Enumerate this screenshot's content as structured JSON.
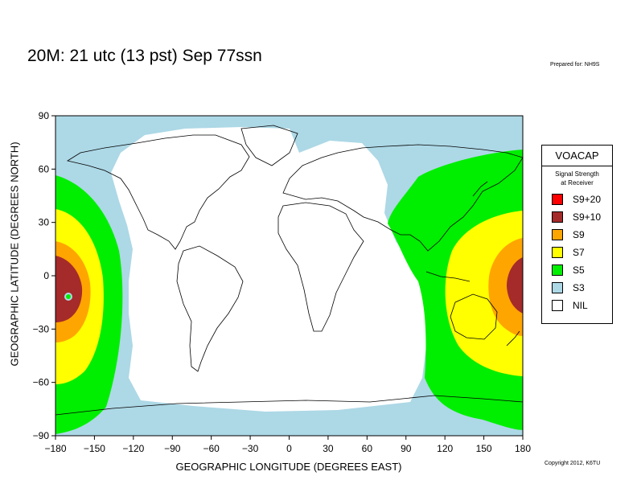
{
  "header": {
    "title": "20M:  21 utc (13 pst) Sep 77ssn",
    "prepared": "Prepared for: NH9S"
  },
  "map": {
    "x_axis": {
      "label": "GEOGRAPHIC LONGITUDE (DEGREES EAST)",
      "min": -180,
      "max": 180,
      "ticks": [
        "−180",
        "−150",
        "−120",
        "−90",
        "−60",
        "−30",
        "0",
        "30",
        "60",
        "90",
        "120",
        "150",
        "180"
      ]
    },
    "y_axis": {
      "label": "GEOGRAPHIC LATITUDE (DEGREES NORTH)",
      "min": -90,
      "max": 90,
      "ticks": [
        "−90",
        "−60",
        "−30",
        "0",
        "30",
        "60",
        "90"
      ]
    },
    "colors": {
      "background": "#ffffff",
      "S3": "#add8e6",
      "S5": "#00ee00",
      "S7": "#ffff00",
      "S9": "#ffa500",
      "S9+10": "#a52a2a",
      "S9+20": "#ff0000",
      "border": "#000000"
    },
    "transmitter": {
      "lon": -170,
      "lat": -12
    },
    "land_lines": "black continent and country outlines"
  },
  "legend": {
    "title": "VOACAP",
    "subtitle_line1": "Signal Strength",
    "subtitle_line2": "at Receiver",
    "items": [
      {
        "label": "S9+20",
        "color": "#ff0000"
      },
      {
        "label": "S9+10",
        "color": "#a52a2a"
      },
      {
        "label": "S9",
        "color": "#ffa500"
      },
      {
        "label": "S7",
        "color": "#ffff00"
      },
      {
        "label": "S5",
        "color": "#00ee00"
      },
      {
        "label": "S3",
        "color": "#add8e6"
      },
      {
        "label": "NIL",
        "color": "#ffffff"
      }
    ]
  },
  "footer": {
    "copyright": "Copyright 2012, K6TU"
  }
}
